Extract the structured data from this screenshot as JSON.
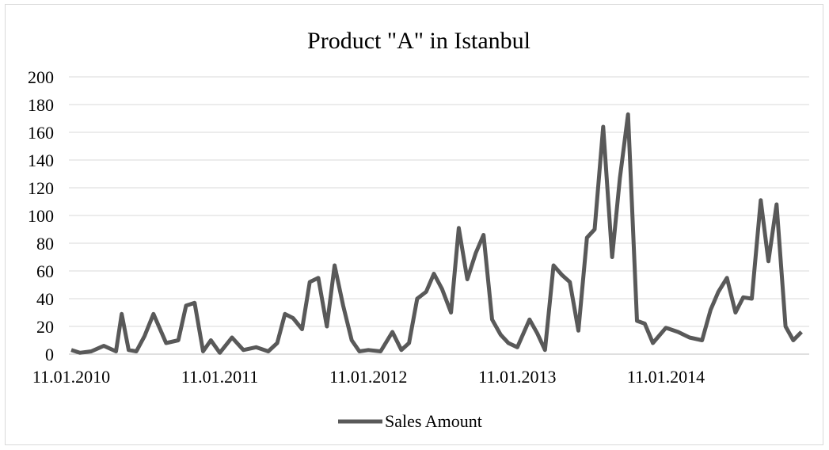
{
  "chart_data": {
    "type": "line",
    "title": "Product \"A\" in Istanbul",
    "xlabel": "",
    "ylabel": "",
    "ylim": [
      0,
      200
    ],
    "yticks": [
      "0",
      "20",
      "40",
      "60",
      "80",
      "100",
      "120",
      "140",
      "160",
      "180",
      "200"
    ],
    "xticks": [
      "11.01.2010",
      "11.01.2011",
      "11.01.2012",
      "11.01.2013",
      "11.01.2014"
    ],
    "grid": true,
    "legend": "bottom",
    "series_color": "#595959",
    "series": [
      {
        "name": "Sales Amount",
        "x": [
          "2010-01-11",
          "2010-02-01",
          "2010-03-01",
          "2010-04-01",
          "2010-05-01",
          "2010-05-15",
          "2010-06-01",
          "2010-06-20",
          "2010-07-10",
          "2010-08-01",
          "2010-09-01",
          "2010-10-01",
          "2010-10-20",
          "2010-11-10",
          "2010-12-01",
          "2010-12-20",
          "2011-01-11",
          "2011-02-10",
          "2011-03-10",
          "2011-04-10",
          "2011-05-10",
          "2011-06-01",
          "2011-06-20",
          "2011-07-10",
          "2011-08-01",
          "2011-08-20",
          "2011-09-10",
          "2011-10-01",
          "2011-10-20",
          "2011-11-10",
          "2011-12-01",
          "2011-12-20",
          "2012-01-11",
          "2012-02-10",
          "2012-03-10",
          "2012-04-01",
          "2012-04-20",
          "2012-05-10",
          "2012-06-01",
          "2012-06-20",
          "2012-07-10",
          "2012-08-01",
          "2012-08-20",
          "2012-09-10",
          "2012-10-01",
          "2012-10-20",
          "2012-11-10",
          "2012-12-01",
          "2012-12-20",
          "2013-01-11",
          "2013-02-10",
          "2013-03-01",
          "2013-03-20",
          "2013-04-10",
          "2013-05-01",
          "2013-05-20",
          "2013-06-10",
          "2013-07-01",
          "2013-07-20",
          "2013-08-10",
          "2013-09-01",
          "2013-09-20",
          "2013-10-10",
          "2013-11-01",
          "2013-11-20",
          "2013-12-10",
          "2014-01-11",
          "2014-02-10",
          "2014-03-10",
          "2014-04-10",
          "2014-05-01",
          "2014-05-20",
          "2014-06-10",
          "2014-07-01",
          "2014-07-20",
          "2014-08-10",
          "2014-09-01",
          "2014-09-20",
          "2014-10-10",
          "2014-11-01",
          "2014-11-20",
          "2014-12-10"
        ],
        "values": [
          3,
          1,
          2,
          6,
          2,
          29,
          3,
          2,
          13,
          29,
          8,
          10,
          35,
          37,
          2,
          10,
          1,
          12,
          3,
          5,
          2,
          8,
          29,
          26,
          18,
          52,
          55,
          20,
          64,
          35,
          10,
          2,
          3,
          2,
          16,
          3,
          8,
          40,
          45,
          58,
          47,
          30,
          91,
          54,
          73,
          86,
          25,
          14,
          8,
          5,
          25,
          15,
          3,
          64,
          57,
          52,
          17,
          84,
          90,
          164,
          70,
          127,
          173,
          24,
          22,
          8,
          19,
          16,
          12,
          10,
          32,
          45,
          55,
          30,
          41,
          40,
          111,
          67,
          108,
          20,
          10,
          16
        ]
      }
    ]
  }
}
